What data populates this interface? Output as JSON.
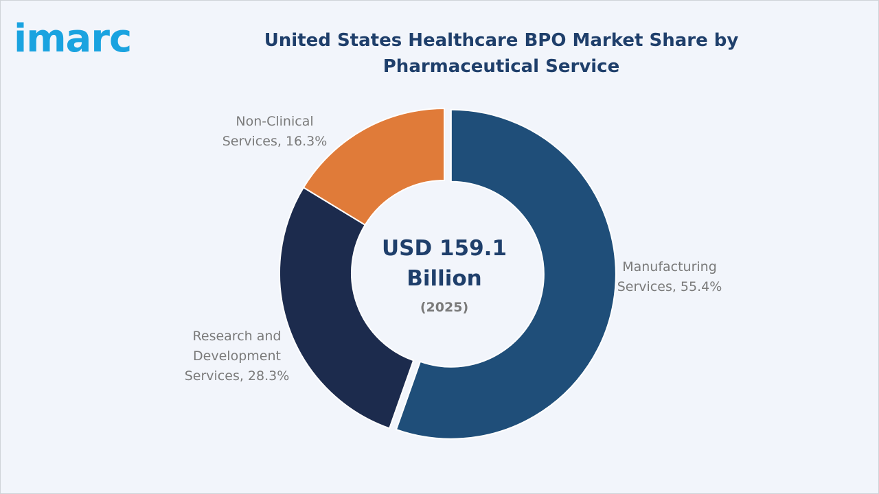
{
  "logo": {
    "text": "imarc",
    "color": "#1aa3e0"
  },
  "chart_data": {
    "type": "pie",
    "variant": "donut",
    "title": "United States Healthcare BPO Market Share by Pharmaceutical Service",
    "center_value": "USD 159.1 Billion",
    "center_year": "(2025)",
    "slices": [
      {
        "label_line1": "Manufacturing",
        "label_line2": "Services, 55.4%",
        "value": 55.4,
        "color": "#1f4e79"
      },
      {
        "label_line1": "Research and Development",
        "label_line2": "Services, 28.3%",
        "value": 28.3,
        "color": "#1c2b4d"
      },
      {
        "label_line1": "Non-Clinical",
        "label_line2": "Services, 16.3%",
        "value": 16.3,
        "color": "#e07b39"
      }
    ]
  }
}
